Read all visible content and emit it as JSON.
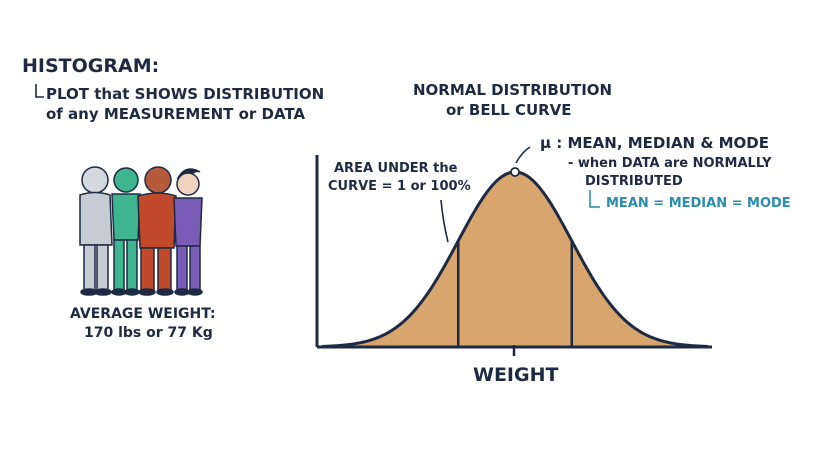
{
  "histogram": {
    "title": "HISTOGRAM:",
    "def_line1": "PLOT that SHOWS DISTRIBUTION",
    "def_line2": "of any MEASUREMENT or DATA"
  },
  "people": {
    "avg_label": "AVERAGE WEIGHT:",
    "avg_value": "170 lbs or 77 Kg"
  },
  "chart": {
    "title_line1": "NORMAL DISTRIBUTION",
    "title_line2": "or BELL CURVE",
    "xlabel": "WEIGHT",
    "area_line1": "AREA UNDER the",
    "area_line2": "CURVE = 1 or 100%",
    "mu_label": "μ : MEAN, MEDIAN & MODE",
    "normal_line1": "- when DATA are NORMALLY",
    "normal_line2": "DISTRIBUTED",
    "equality": "MEAN = MEDIAN = MODE"
  },
  "colors": {
    "ink": "#1e2a44",
    "fill": "#d8a56c",
    "teal": "#2a8cae",
    "person1": "#c5ccd3",
    "person2": "#3fb58f",
    "person3": "#c24a2c",
    "person4": "#7b5bb8"
  },
  "chart_data": {
    "type": "area",
    "title": "NORMAL DISTRIBUTION or BELL CURVE",
    "xlabel": "WEIGHT",
    "ylabel": "",
    "distribution": "normal",
    "mean": 0,
    "std": 1,
    "shaded_interval_marks": [
      -1,
      0,
      1
    ],
    "annotations": [
      "AREA UNDER the CURVE = 1 or 100%",
      "μ : MEAN, MEDIAN & MODE"
    ]
  }
}
